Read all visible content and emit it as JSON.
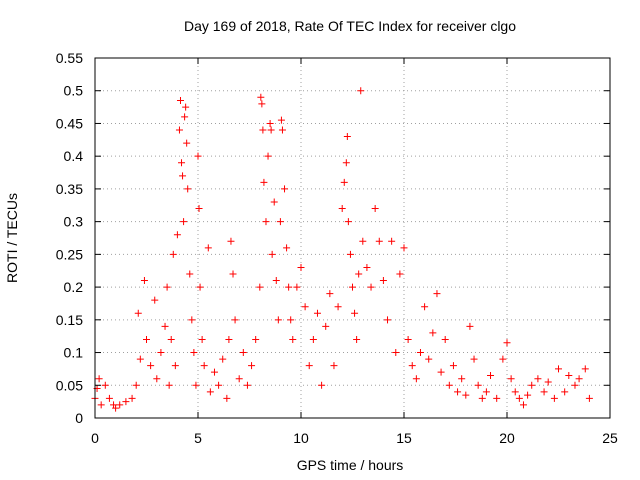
{
  "chart_data": {
    "type": "scatter",
    "title": "Day 169 of 2018, Rate Of TEC Index for receiver clgo",
    "xlabel": "GPS time / hours",
    "ylabel": "ROTI / TECUs",
    "xlim": [
      0,
      25
    ],
    "ylim": [
      0,
      0.55
    ],
    "xticks": [
      0,
      5,
      10,
      15,
      20,
      25
    ],
    "xtick_labels": [
      "0",
      "5",
      "10",
      "15",
      "20",
      "25"
    ],
    "yticks": [
      0,
      0.05,
      0.1,
      0.15,
      0.2,
      0.25,
      0.3,
      0.35,
      0.4,
      0.45,
      0.5,
      0.55
    ],
    "ytick_labels": [
      "0",
      "0.05",
      "0.1",
      "0.15",
      "0.2",
      "0.25",
      "0.3",
      "0.35",
      "0.4",
      "0.45",
      "0.5",
      "0.55"
    ],
    "grid": true,
    "marker": "plus",
    "colors": {
      "points": "#ff0000",
      "grid": "#a0a0a0",
      "axes": "#000000"
    },
    "series": [
      {
        "name": "ROTI",
        "points": [
          [
            0.0,
            0.03
          ],
          [
            0.1,
            0.045
          ],
          [
            0.2,
            0.06
          ],
          [
            0.3,
            0.02
          ],
          [
            0.5,
            0.05
          ],
          [
            0.7,
            0.03
          ],
          [
            0.9,
            0.02
          ],
          [
            1.0,
            0.015
          ],
          [
            1.2,
            0.02
          ],
          [
            1.5,
            0.025
          ],
          [
            1.8,
            0.03
          ],
          [
            2.0,
            0.05
          ],
          [
            2.1,
            0.16
          ],
          [
            2.2,
            0.09
          ],
          [
            2.4,
            0.21
          ],
          [
            2.5,
            0.12
          ],
          [
            2.7,
            0.08
          ],
          [
            2.9,
            0.18
          ],
          [
            3.0,
            0.06
          ],
          [
            3.2,
            0.1
          ],
          [
            3.4,
            0.14
          ],
          [
            3.5,
            0.2
          ],
          [
            3.6,
            0.05
          ],
          [
            3.7,
            0.12
          ],
          [
            3.8,
            0.25
          ],
          [
            3.9,
            0.08
          ],
          [
            4.0,
            0.28
          ],
          [
            4.1,
            0.44
          ],
          [
            4.15,
            0.485
          ],
          [
            4.2,
            0.39
          ],
          [
            4.25,
            0.37
          ],
          [
            4.3,
            0.3
          ],
          [
            4.35,
            0.46
          ],
          [
            4.4,
            0.475
          ],
          [
            4.45,
            0.42
          ],
          [
            4.5,
            0.35
          ],
          [
            4.6,
            0.22
          ],
          [
            4.7,
            0.15
          ],
          [
            4.8,
            0.1
          ],
          [
            4.9,
            0.05
          ],
          [
            5.0,
            0.4
          ],
          [
            5.05,
            0.32
          ],
          [
            5.1,
            0.2
          ],
          [
            5.2,
            0.12
          ],
          [
            5.3,
            0.08
          ],
          [
            5.5,
            0.26
          ],
          [
            5.6,
            0.04
          ],
          [
            5.8,
            0.07
          ],
          [
            6.0,
            0.05
          ],
          [
            6.2,
            0.09
          ],
          [
            6.4,
            0.03
          ],
          [
            6.5,
            0.12
          ],
          [
            6.6,
            0.27
          ],
          [
            6.7,
            0.22
          ],
          [
            6.8,
            0.15
          ],
          [
            7.0,
            0.06
          ],
          [
            7.2,
            0.1
          ],
          [
            7.4,
            0.05
          ],
          [
            7.6,
            0.08
          ],
          [
            7.8,
            0.12
          ],
          [
            8.0,
            0.2
          ],
          [
            8.05,
            0.49
          ],
          [
            8.1,
            0.48
          ],
          [
            8.15,
            0.44
          ],
          [
            8.2,
            0.36
          ],
          [
            8.3,
            0.3
          ],
          [
            8.4,
            0.4
          ],
          [
            8.5,
            0.45
          ],
          [
            8.55,
            0.44
          ],
          [
            8.6,
            0.25
          ],
          [
            8.7,
            0.33
          ],
          [
            8.8,
            0.21
          ],
          [
            8.9,
            0.15
          ],
          [
            9.0,
            0.3
          ],
          [
            9.05,
            0.455
          ],
          [
            9.1,
            0.44
          ],
          [
            9.2,
            0.35
          ],
          [
            9.3,
            0.26
          ],
          [
            9.4,
            0.2
          ],
          [
            9.5,
            0.15
          ],
          [
            9.6,
            0.12
          ],
          [
            9.8,
            0.2
          ],
          [
            10.0,
            0.23
          ],
          [
            10.2,
            0.17
          ],
          [
            10.4,
            0.08
          ],
          [
            10.6,
            0.12
          ],
          [
            10.8,
            0.16
          ],
          [
            11.0,
            0.05
          ],
          [
            11.2,
            0.14
          ],
          [
            11.4,
            0.19
          ],
          [
            11.6,
            0.08
          ],
          [
            11.8,
            0.17
          ],
          [
            12.0,
            0.32
          ],
          [
            12.1,
            0.36
          ],
          [
            12.2,
            0.39
          ],
          [
            12.25,
            0.43
          ],
          [
            12.3,
            0.3
          ],
          [
            12.4,
            0.25
          ],
          [
            12.5,
            0.2
          ],
          [
            12.6,
            0.16
          ],
          [
            12.7,
            0.12
          ],
          [
            12.8,
            0.22
          ],
          [
            12.9,
            0.5
          ],
          [
            13.0,
            0.27
          ],
          [
            13.2,
            0.23
          ],
          [
            13.4,
            0.2
          ],
          [
            13.6,
            0.32
          ],
          [
            13.8,
            0.27
          ],
          [
            14.0,
            0.21
          ],
          [
            14.2,
            0.15
          ],
          [
            14.4,
            0.27
          ],
          [
            14.6,
            0.1
          ],
          [
            14.8,
            0.22
          ],
          [
            15.0,
            0.26
          ],
          [
            15.2,
            0.12
          ],
          [
            15.4,
            0.08
          ],
          [
            15.6,
            0.06
          ],
          [
            15.8,
            0.1
          ],
          [
            16.0,
            0.17
          ],
          [
            16.2,
            0.09
          ],
          [
            16.4,
            0.13
          ],
          [
            16.6,
            0.19
          ],
          [
            16.8,
            0.07
          ],
          [
            17.0,
            0.12
          ],
          [
            17.2,
            0.05
          ],
          [
            17.4,
            0.08
          ],
          [
            17.6,
            0.04
          ],
          [
            17.8,
            0.06
          ],
          [
            18.0,
            0.035
          ],
          [
            18.2,
            0.14
          ],
          [
            18.4,
            0.09
          ],
          [
            18.6,
            0.05
          ],
          [
            18.8,
            0.03
          ],
          [
            19.0,
            0.04
          ],
          [
            19.2,
            0.065
          ],
          [
            19.5,
            0.03
          ],
          [
            19.8,
            0.09
          ],
          [
            20.0,
            0.115
          ],
          [
            20.2,
            0.06
          ],
          [
            20.4,
            0.04
          ],
          [
            20.6,
            0.03
          ],
          [
            20.8,
            0.02
          ],
          [
            21.0,
            0.035
          ],
          [
            21.2,
            0.05
          ],
          [
            21.5,
            0.06
          ],
          [
            21.8,
            0.04
          ],
          [
            22.0,
            0.055
          ],
          [
            22.3,
            0.03
          ],
          [
            22.5,
            0.075
          ],
          [
            22.8,
            0.04
          ],
          [
            23.0,
            0.065
          ],
          [
            23.3,
            0.05
          ],
          [
            23.5,
            0.06
          ],
          [
            23.8,
            0.075
          ],
          [
            24.0,
            0.03
          ]
        ]
      }
    ]
  }
}
